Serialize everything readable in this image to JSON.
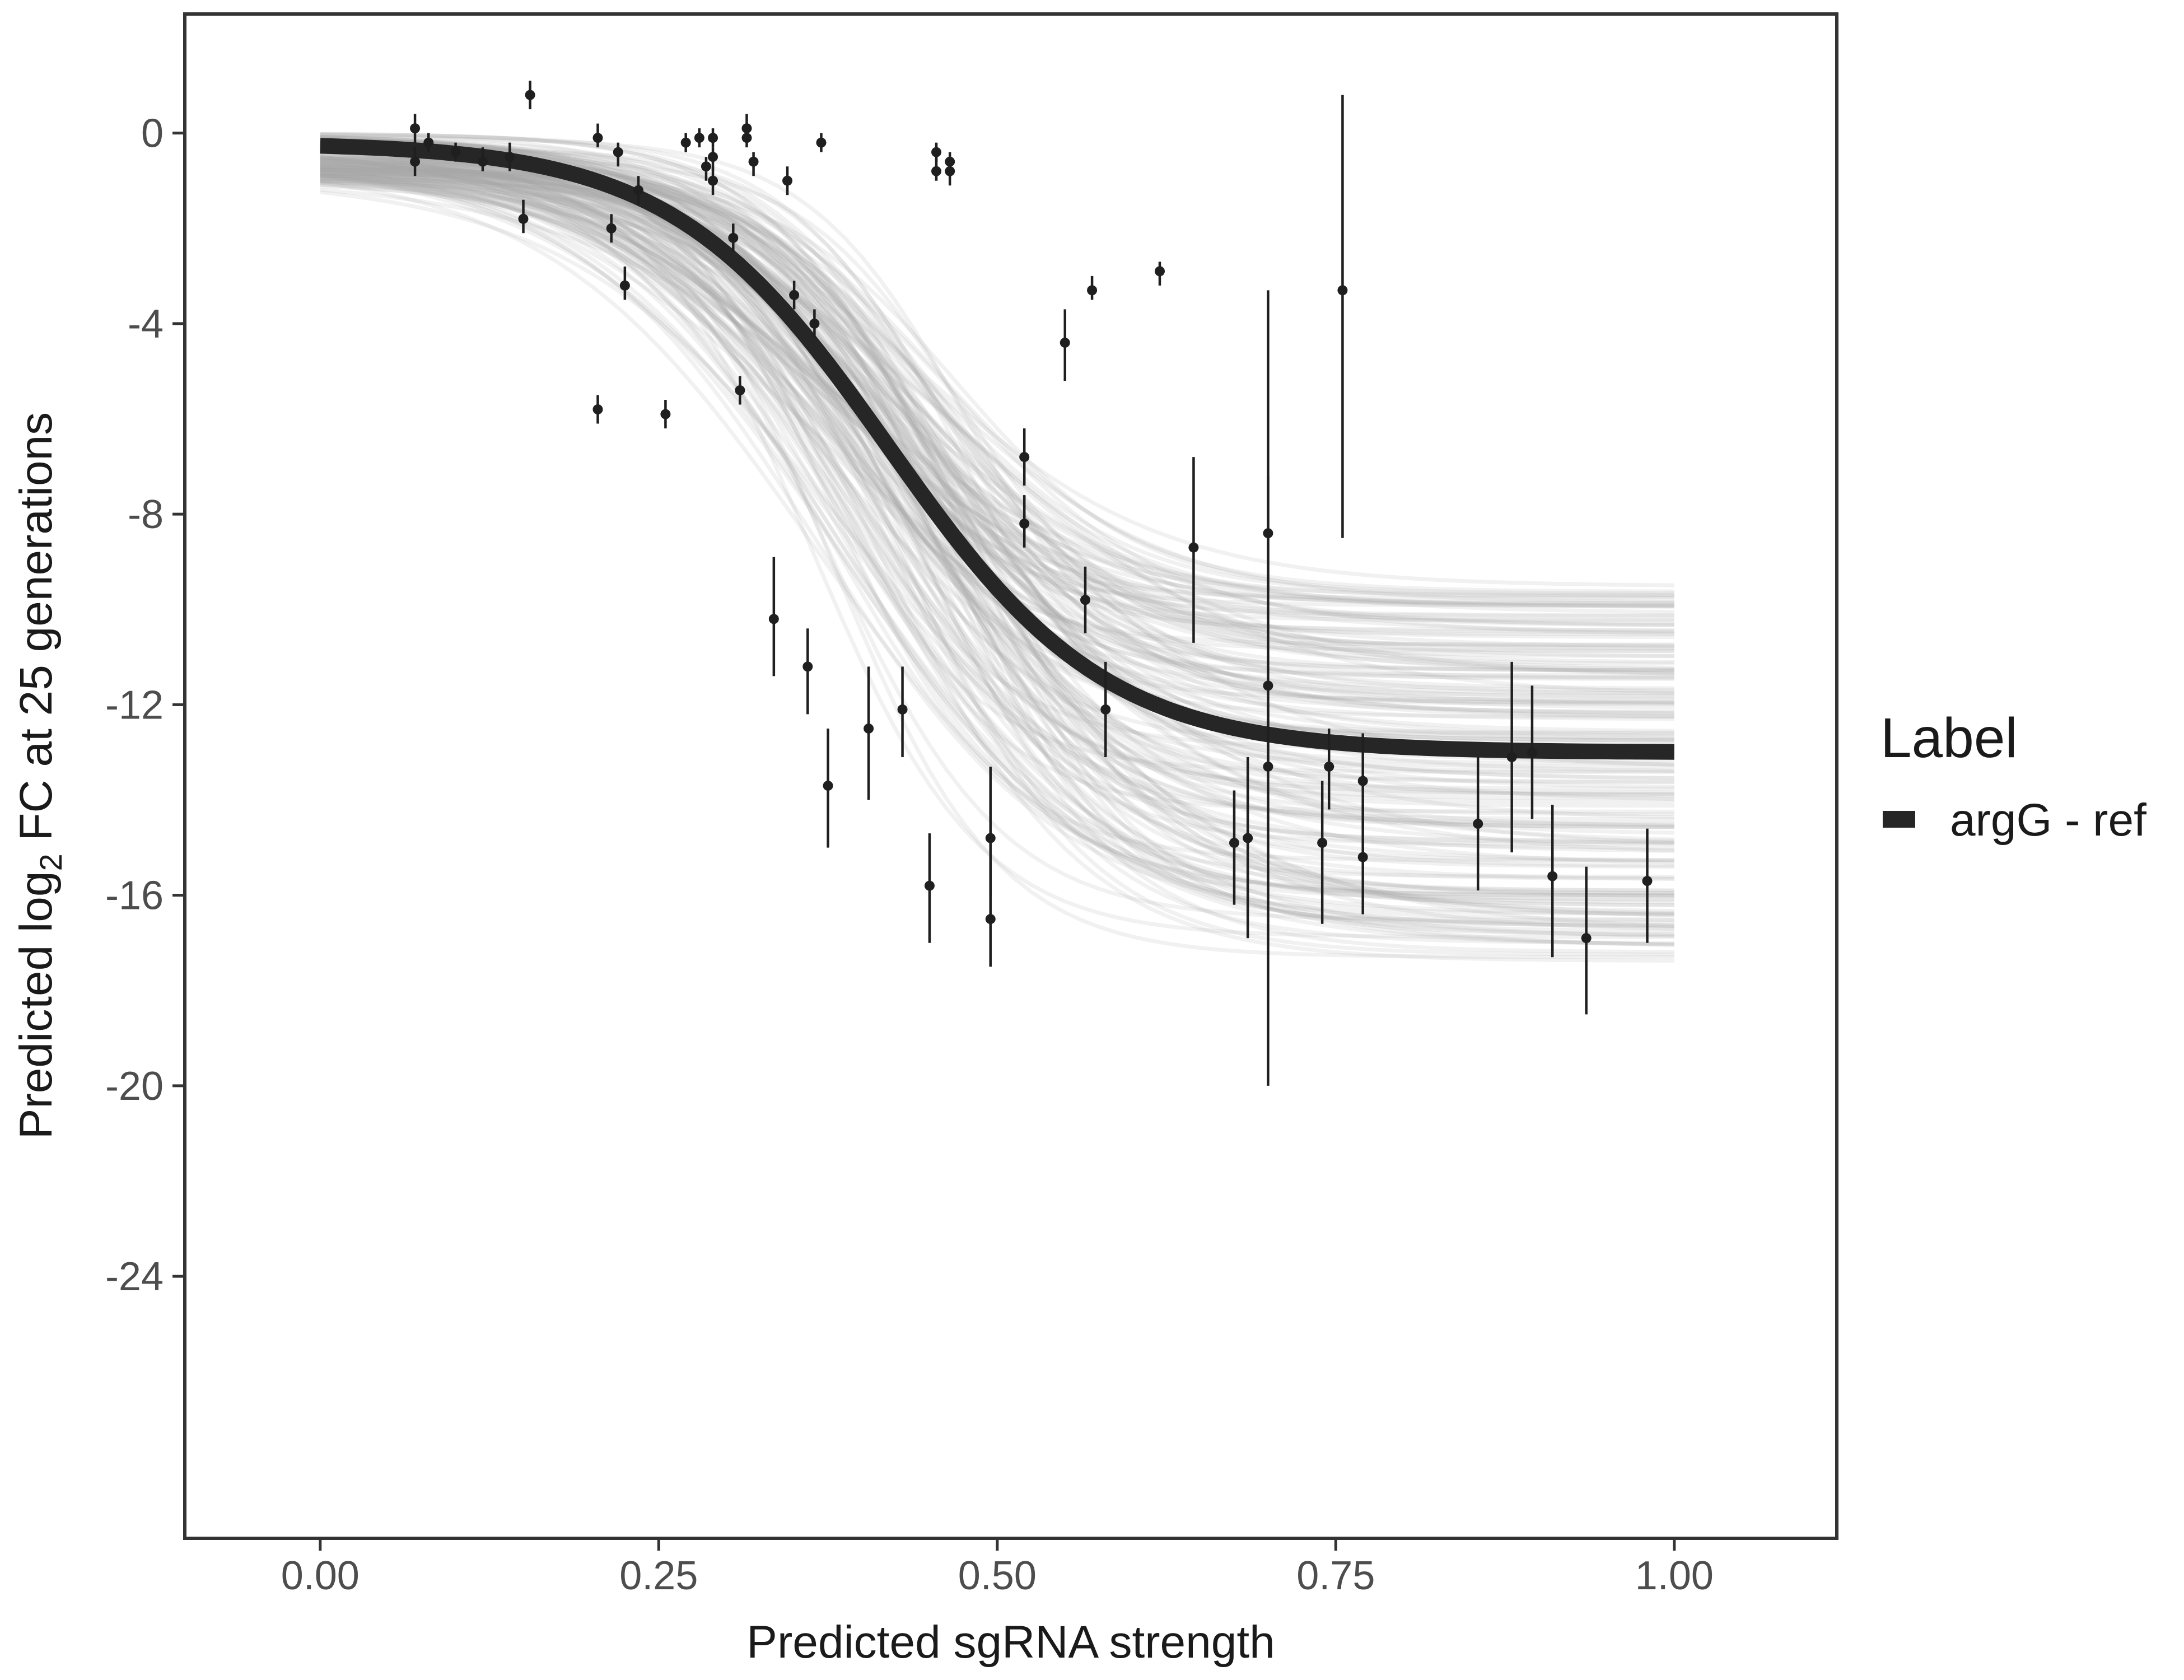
{
  "chart_data": {
    "type": "scatter",
    "xlabel": "Predicted sgRNA strength",
    "ylabel_parts": {
      "prefix": "Predicted  log",
      "subscript": "2",
      "suffix": " FC at 25 generations"
    },
    "xlim": [
      -0.1,
      1.12
    ],
    "ylim": [
      -29.5,
      2.5
    ],
    "x_ticks": [
      0,
      0.25,
      0.5,
      0.75,
      1
    ],
    "x_tick_labels": [
      "0.00",
      "0.25",
      "0.50",
      "0.75",
      "1.00"
    ],
    "y_ticks": [
      0,
      -4,
      -8,
      -12,
      -16,
      -20,
      -24
    ],
    "y_tick_labels": [
      "0",
      "-4",
      "-8",
      "-12",
      "-16",
      "-20",
      "-24"
    ],
    "grid": false,
    "legend": {
      "title": "Label",
      "position": "right",
      "entries": [
        {
          "label": "argG - ref",
          "color": "#262626"
        }
      ]
    },
    "fit_curve": {
      "name": "argG - ref",
      "color": "#262626",
      "x_range": [
        0,
        1
      ],
      "upper": -0.2,
      "lower": -13.0,
      "midpoint": 0.42,
      "slope": 12.5
    },
    "posterior_band": {
      "color": "#a8a8a8",
      "upper_range": [
        0,
        -1.0
      ],
      "lower_range": [
        -9.5,
        -17.5
      ]
    },
    "points": [
      {
        "x": 0.07,
        "y": 0.1,
        "lo": -0.2,
        "hi": 0.4
      },
      {
        "x": 0.07,
        "y": -0.6,
        "lo": -0.9,
        "hi": -0.3
      },
      {
        "x": 0.08,
        "y": -0.2,
        "lo": -0.4,
        "hi": 0.0
      },
      {
        "x": 0.1,
        "y": -0.4,
        "lo": -0.6,
        "hi": -0.2
      },
      {
        "x": 0.12,
        "y": -0.6,
        "lo": -0.8,
        "hi": -0.3
      },
      {
        "x": 0.14,
        "y": -0.5,
        "lo": -0.8,
        "hi": -0.2
      },
      {
        "x": 0.15,
        "y": -1.8,
        "lo": -2.1,
        "hi": -1.4
      },
      {
        "x": 0.155,
        "y": 0.8,
        "lo": 0.5,
        "hi": 1.1
      },
      {
        "x": 0.205,
        "y": -5.8,
        "lo": -6.1,
        "hi": -5.5
      },
      {
        "x": 0.205,
        "y": -0.1,
        "lo": -0.3,
        "hi": 0.2
      },
      {
        "x": 0.215,
        "y": -2.0,
        "lo": -2.3,
        "hi": -1.7
      },
      {
        "x": 0.22,
        "y": -0.4,
        "lo": -0.7,
        "hi": -0.2
      },
      {
        "x": 0.225,
        "y": -3.2,
        "lo": -3.5,
        "hi": -2.8
      },
      {
        "x": 0.235,
        "y": -1.2,
        "lo": -1.5,
        "hi": -0.9
      },
      {
        "x": 0.255,
        "y": -5.9,
        "lo": -6.2,
        "hi": -5.6
      },
      {
        "x": 0.27,
        "y": -0.2,
        "lo": -0.4,
        "hi": 0.0
      },
      {
        "x": 0.28,
        "y": -0.1,
        "lo": -0.3,
        "hi": 0.1
      },
      {
        "x": 0.285,
        "y": -0.7,
        "lo": -1.0,
        "hi": -0.5
      },
      {
        "x": 0.29,
        "y": -0.1,
        "lo": -0.3,
        "hi": 0.1
      },
      {
        "x": 0.29,
        "y": -1.0,
        "lo": -1.3,
        "hi": -0.7
      },
      {
        "x": 0.29,
        "y": -0.5,
        "lo": -0.8,
        "hi": -0.3
      },
      {
        "x": 0.305,
        "y": -2.2,
        "lo": -2.5,
        "hi": -1.9
      },
      {
        "x": 0.31,
        "y": -5.4,
        "lo": -5.7,
        "hi": -5.1
      },
      {
        "x": 0.315,
        "y": 0.1,
        "lo": -0.1,
        "hi": 0.4
      },
      {
        "x": 0.315,
        "y": -0.1,
        "lo": -0.3,
        "hi": 0.1
      },
      {
        "x": 0.32,
        "y": -0.6,
        "lo": -0.9,
        "hi": -0.4
      },
      {
        "x": 0.335,
        "y": -10.2,
        "lo": -11.4,
        "hi": -8.9
      },
      {
        "x": 0.345,
        "y": -1.0,
        "lo": -1.3,
        "hi": -0.7
      },
      {
        "x": 0.35,
        "y": -3.4,
        "lo": -3.7,
        "hi": -3.1
      },
      {
        "x": 0.36,
        "y": -11.2,
        "lo": -12.2,
        "hi": -10.4
      },
      {
        "x": 0.365,
        "y": -4.0,
        "lo": -4.3,
        "hi": -3.7
      },
      {
        "x": 0.37,
        "y": -0.2,
        "lo": -0.4,
        "hi": 0.0
      },
      {
        "x": 0.375,
        "y": -13.7,
        "lo": -15.0,
        "hi": -12.5
      },
      {
        "x": 0.405,
        "y": -12.5,
        "lo": -14.0,
        "hi": -11.2
      },
      {
        "x": 0.43,
        "y": -12.1,
        "lo": -13.1,
        "hi": -11.2
      },
      {
        "x": 0.45,
        "y": -15.8,
        "lo": -17.0,
        "hi": -14.7
      },
      {
        "x": 0.455,
        "y": -0.4,
        "lo": -0.6,
        "hi": -0.2
      },
      {
        "x": 0.455,
        "y": -0.8,
        "lo": -1.0,
        "hi": -0.5
      },
      {
        "x": 0.465,
        "y": -0.6,
        "lo": -0.9,
        "hi": -0.4
      },
      {
        "x": 0.465,
        "y": -0.8,
        "lo": -1.1,
        "hi": -0.5
      },
      {
        "x": 0.495,
        "y": -14.8,
        "lo": -16.0,
        "hi": -13.3
      },
      {
        "x": 0.495,
        "y": -16.5,
        "lo": -17.5,
        "hi": -15.3
      },
      {
        "x": 0.52,
        "y": -6.8,
        "lo": -7.4,
        "hi": -6.2
      },
      {
        "x": 0.52,
        "y": -8.2,
        "lo": -8.7,
        "hi": -7.6
      },
      {
        "x": 0.55,
        "y": -4.4,
        "lo": -5.2,
        "hi": -3.7
      },
      {
        "x": 0.565,
        "y": -9.8,
        "lo": -10.5,
        "hi": -9.1
      },
      {
        "x": 0.57,
        "y": -3.3,
        "lo": -3.5,
        "hi": -3.0
      },
      {
        "x": 0.58,
        "y": -12.1,
        "lo": -13.1,
        "hi": -11.1
      },
      {
        "x": 0.62,
        "y": -2.9,
        "lo": -3.2,
        "hi": -2.7
      },
      {
        "x": 0.645,
        "y": -8.7,
        "lo": -10.7,
        "hi": -6.8
      },
      {
        "x": 0.675,
        "y": -14.9,
        "lo": -16.2,
        "hi": -13.8
      },
      {
        "x": 0.685,
        "y": -14.8,
        "lo": -16.9,
        "hi": -13.1
      },
      {
        "x": 0.7,
        "y": -8.4,
        "lo": -9.6,
        "hi": -7.2
      },
      {
        "x": 0.7,
        "y": -11.6,
        "lo": -13.4,
        "hi": -3.3
      },
      {
        "x": 0.7,
        "y": -13.3,
        "lo": -20.0,
        "hi": -12.0
      },
      {
        "x": 0.74,
        "y": -14.9,
        "lo": -16.6,
        "hi": -13.6
      },
      {
        "x": 0.745,
        "y": -13.3,
        "lo": -14.2,
        "hi": -12.5
      },
      {
        "x": 0.755,
        "y": -3.3,
        "lo": -8.5,
        "hi": 0.8
      },
      {
        "x": 0.77,
        "y": -13.6,
        "lo": -14.6,
        "hi": -12.6
      },
      {
        "x": 0.77,
        "y": -15.2,
        "lo": -16.4,
        "hi": -14.1
      },
      {
        "x": 0.855,
        "y": -14.5,
        "lo": -15.9,
        "hi": -13.1
      },
      {
        "x": 0.88,
        "y": -13.1,
        "lo": -15.1,
        "hi": -11.1
      },
      {
        "x": 0.895,
        "y": -13.0,
        "lo": -14.4,
        "hi": -11.6
      },
      {
        "x": 0.91,
        "y": -15.6,
        "lo": -17.3,
        "hi": -14.1
      },
      {
        "x": 0.935,
        "y": -16.9,
        "lo": -18.5,
        "hi": -15.4
      },
      {
        "x": 0.98,
        "y": -15.7,
        "lo": -17.0,
        "hi": -14.6
      }
    ]
  }
}
